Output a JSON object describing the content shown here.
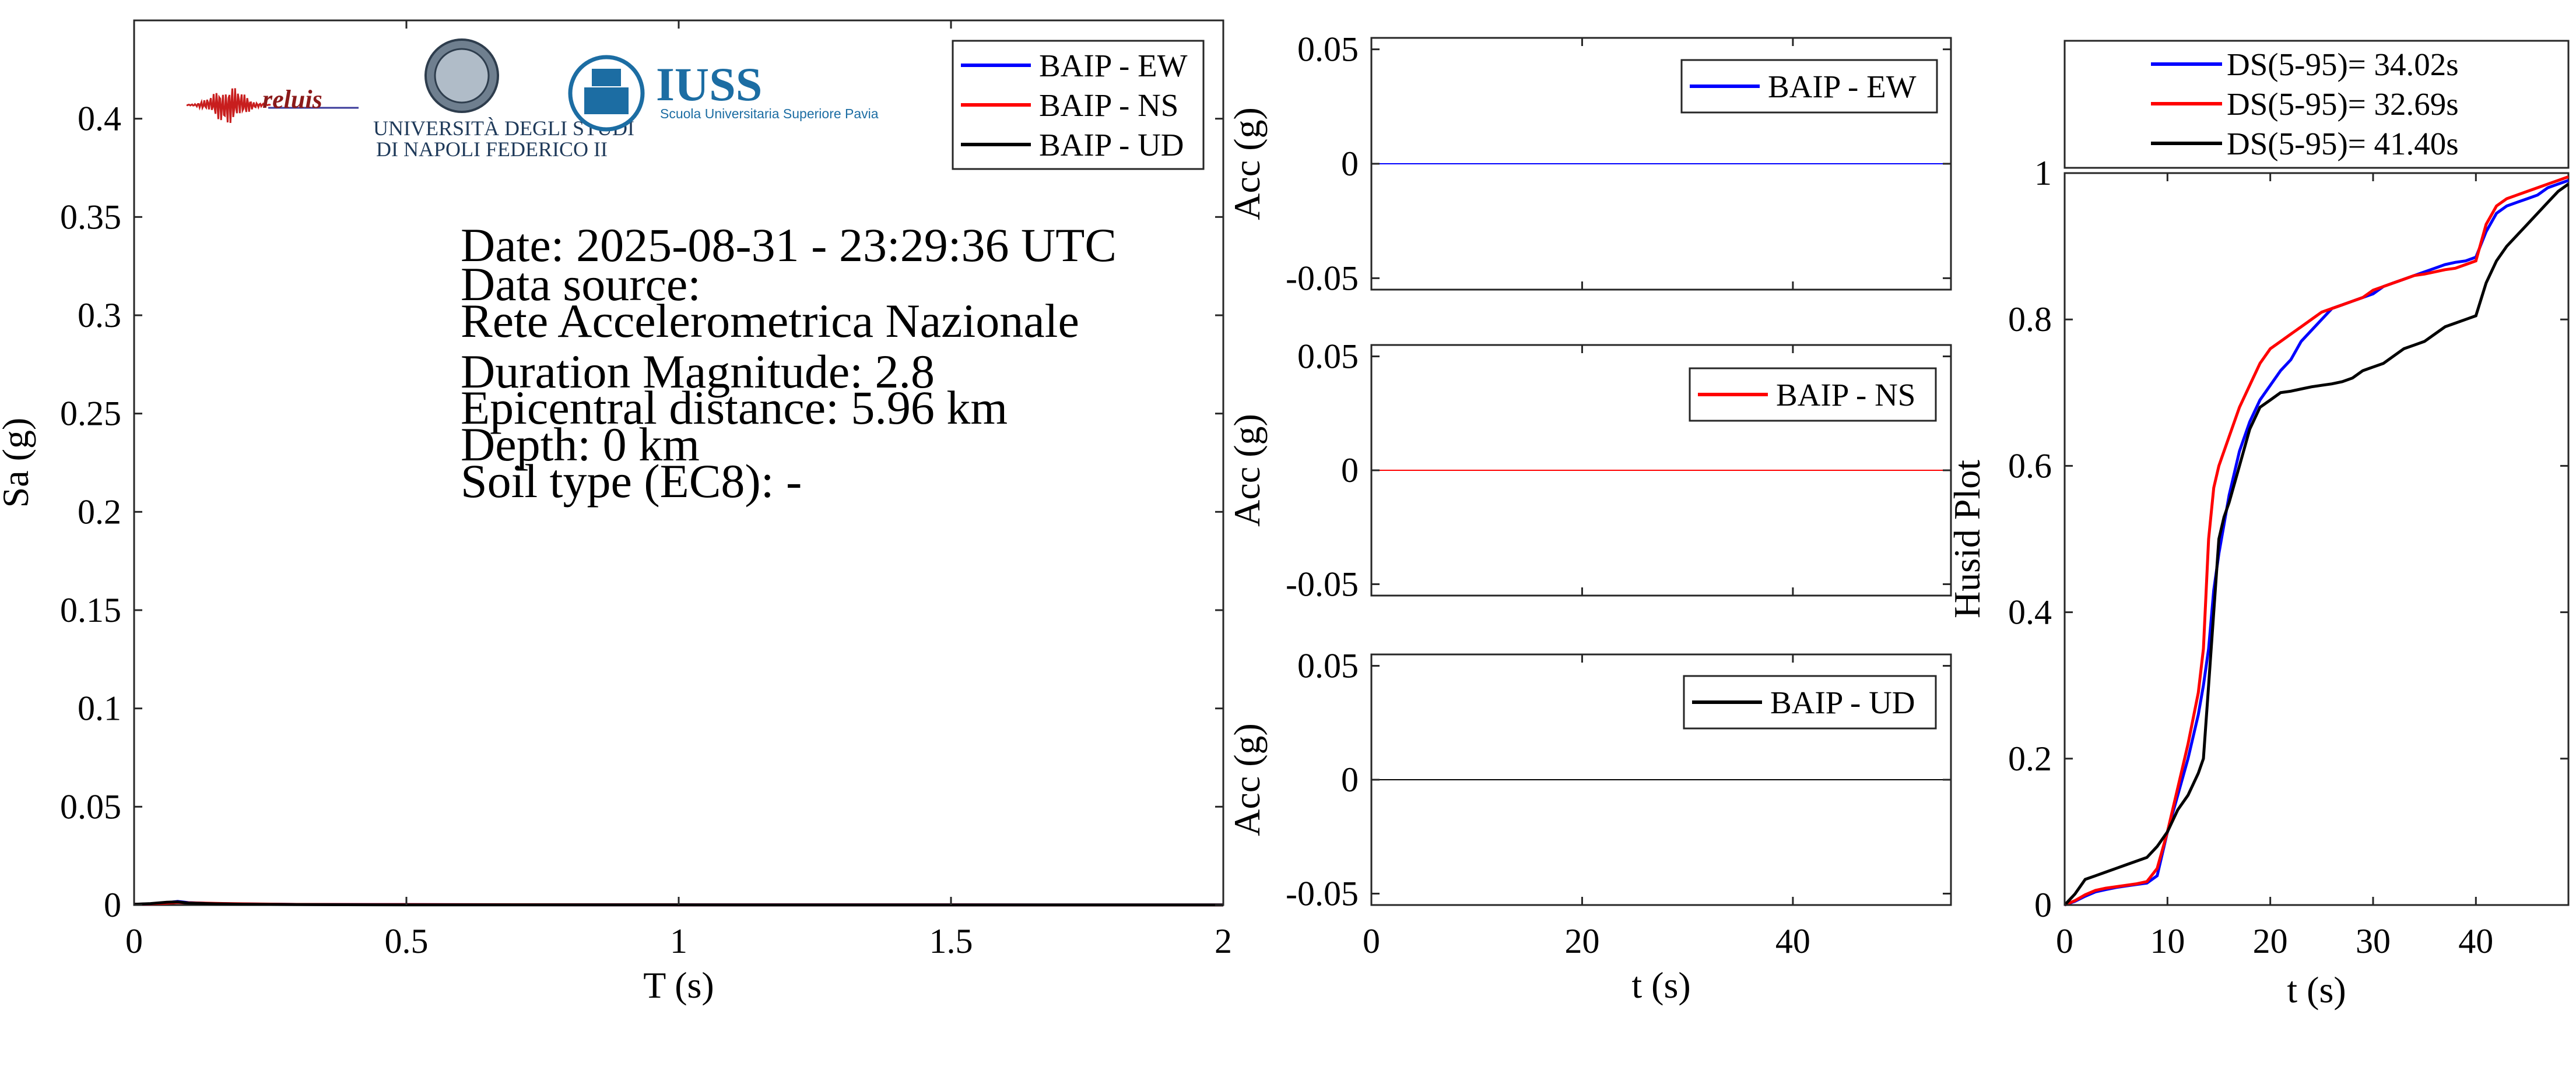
{
  "logos": {
    "reluis": "reluis",
    "unina_line1": "UNIVERSITÀ DEGLI STUDI",
    "unina_line2": "DI NAPOLI FEDERICO II",
    "iuss": "IUSS",
    "iuss_sub": "Scuola Universitaria Superiore Pavia"
  },
  "info": {
    "date": "Date: 2025-08-31 - 23:29:36 UTC",
    "source_label": "Data source:",
    "source": "Rete Accelerometrica Nazionale",
    "magnitude": "Duration Magnitude: 2.8",
    "distance": "Epicentral distance: 5.96 km",
    "depth": "Depth: 0 km",
    "soil": "Soil type (EC8): -"
  },
  "colors": {
    "ew": "#0000ff",
    "ns": "#ff0000",
    "ud": "#000000"
  },
  "chart_data": [
    {
      "type": "line",
      "xlabel": "T (s)",
      "ylabel": "Sa (g)",
      "xlim": [
        0,
        2
      ],
      "ylim": [
        0,
        0.45
      ],
      "xticks": [
        0,
        0.5,
        1,
        1.5,
        2
      ],
      "xtick_labels": [
        "0",
        "0.5",
        "1",
        "1.5",
        "2"
      ],
      "yticks": [
        0,
        0.05,
        0.1,
        0.15,
        0.2,
        0.25,
        0.3,
        0.35,
        0.4
      ],
      "ytick_labels": [
        "0",
        "0.05",
        "0.1",
        "0.15",
        "0.2",
        "0.25",
        "0.3",
        "0.35",
        "0.4"
      ],
      "legend": "top-right",
      "series": [
        {
          "name": "BAIP - EW",
          "color": "#0000ff",
          "x": [
            0,
            0.03,
            0.06,
            0.08,
            0.1,
            0.15,
            0.2,
            0.3,
            0.5,
            1,
            1.5,
            2
          ],
          "y": [
            0.0004,
            0.0006,
            0.0012,
            0.0018,
            0.0012,
            0.0007,
            0.0005,
            0.0003,
            0.0002,
            0.0001,
            5e-05,
            3e-05
          ]
        },
        {
          "name": "BAIP - NS",
          "color": "#ff0000",
          "x": [
            0,
            0.03,
            0.06,
            0.08,
            0.1,
            0.15,
            0.2,
            0.3,
            0.5,
            1,
            1.5,
            2
          ],
          "y": [
            0.0004,
            0.0006,
            0.001,
            0.0013,
            0.0011,
            0.0008,
            0.0006,
            0.0003,
            0.0002,
            0.0001,
            5e-05,
            3e-05
          ]
        },
        {
          "name": "BAIP - UD",
          "color": "#000000",
          "x": [
            0,
            0.03,
            0.06,
            0.08,
            0.1,
            0.15,
            0.2,
            0.3,
            0.5,
            1,
            1.5,
            2
          ],
          "y": [
            0.0004,
            0.0007,
            0.0014,
            0.0016,
            0.001,
            0.0006,
            0.0004,
            0.0002,
            0.0001,
            5e-05,
            3e-05,
            2e-05
          ]
        }
      ]
    },
    {
      "type": "line",
      "xlabel": "",
      "ylabel": "Acc (g)",
      "xlim": [
        0,
        55
      ],
      "ylim": [
        -0.055,
        0.055
      ],
      "yticks": [
        -0.05,
        0,
        0.05
      ],
      "ytick_labels": [
        "-0.05",
        "0",
        "0.05"
      ],
      "legend": "top-right",
      "series": [
        {
          "name": "BAIP - EW",
          "color": "#0000ff",
          "x": [
            0,
            55
          ],
          "y": [
            0,
            0
          ]
        }
      ]
    },
    {
      "type": "line",
      "xlabel": "",
      "ylabel": "Acc (g)",
      "xlim": [
        0,
        55
      ],
      "ylim": [
        -0.055,
        0.055
      ],
      "yticks": [
        -0.05,
        0,
        0.05
      ],
      "ytick_labels": [
        "-0.05",
        "0",
        "0.05"
      ],
      "legend": "top-right",
      "series": [
        {
          "name": "BAIP - NS",
          "color": "#ff0000",
          "x": [
            0,
            55
          ],
          "y": [
            0,
            0
          ]
        }
      ]
    },
    {
      "type": "line",
      "xlabel": "t (s)",
      "ylabel": "Acc (g)",
      "xlim": [
        0,
        55
      ],
      "ylim": [
        -0.055,
        0.055
      ],
      "xticks": [
        0,
        20,
        40
      ],
      "xtick_labels": [
        "0",
        "20",
        "40"
      ],
      "yticks": [
        -0.05,
        0,
        0.05
      ],
      "ytick_labels": [
        "-0.05",
        "0",
        "0.05"
      ],
      "legend": "top-right",
      "series": [
        {
          "name": "BAIP - UD",
          "color": "#000000",
          "x": [
            0,
            55
          ],
          "y": [
            0,
            0
          ]
        }
      ]
    },
    {
      "type": "line",
      "xlabel": "t (s)",
      "ylabel": "Husid Plot",
      "xlim": [
        0,
        49
      ],
      "ylim": [
        0,
        1
      ],
      "xticks": [
        0,
        10,
        20,
        30,
        40
      ],
      "xtick_labels": [
        "0",
        "10",
        "20",
        "30",
        "40"
      ],
      "yticks": [
        0,
        0.2,
        0.4,
        0.6,
        0.8,
        1
      ],
      "ytick_labels": [
        "0",
        "0.2",
        "0.4",
        "0.6",
        "0.8",
        "1"
      ],
      "legend": "top",
      "series": [
        {
          "name": "DS(5-95)= 34.02s",
          "color": "#0000ff",
          "x": [
            0,
            1,
            2,
            3,
            4,
            5,
            6,
            7,
            8,
            9,
            10,
            11,
            12,
            13,
            13.5,
            14,
            14.5,
            15,
            15.5,
            16,
            17,
            18,
            19,
            20,
            21,
            22,
            23,
            24,
            25,
            26,
            27,
            28,
            29,
            30,
            31,
            32,
            33,
            34,
            35,
            36,
            37,
            38,
            39,
            40,
            41,
            42,
            43,
            44,
            45,
            46,
            47,
            48,
            49
          ],
          "y": [
            0,
            0.005,
            0.012,
            0.018,
            0.021,
            0.024,
            0.026,
            0.028,
            0.03,
            0.04,
            0.1,
            0.15,
            0.2,
            0.26,
            0.3,
            0.35,
            0.43,
            0.48,
            0.52,
            0.56,
            0.62,
            0.66,
            0.69,
            0.71,
            0.73,
            0.745,
            0.77,
            0.785,
            0.8,
            0.815,
            0.82,
            0.825,
            0.83,
            0.835,
            0.845,
            0.85,
            0.855,
            0.86,
            0.865,
            0.87,
            0.875,
            0.878,
            0.88,
            0.885,
            0.92,
            0.945,
            0.955,
            0.96,
            0.965,
            0.97,
            0.98,
            0.985,
            0.99
          ]
        },
        {
          "name": "DS(5-95)= 32.69s",
          "color": "#ff0000",
          "x": [
            0,
            1,
            2,
            3,
            4,
            5,
            6,
            7,
            8,
            9,
            10,
            11,
            12,
            13,
            13.5,
            14,
            14.5,
            15,
            15.5,
            16,
            17,
            18,
            19,
            20,
            21,
            22,
            23,
            24,
            25,
            26,
            27,
            28,
            29,
            30,
            31,
            32,
            33,
            34,
            35,
            36,
            37,
            38,
            39,
            40,
            41,
            42,
            43,
            44,
            45,
            46,
            47,
            48,
            49
          ],
          "y": [
            0,
            0.006,
            0.014,
            0.02,
            0.023,
            0.025,
            0.027,
            0.029,
            0.032,
            0.05,
            0.1,
            0.16,
            0.22,
            0.29,
            0.35,
            0.5,
            0.57,
            0.6,
            0.62,
            0.64,
            0.68,
            0.71,
            0.74,
            0.76,
            0.77,
            0.78,
            0.79,
            0.8,
            0.81,
            0.815,
            0.82,
            0.825,
            0.83,
            0.84,
            0.845,
            0.85,
            0.855,
            0.86,
            0.862,
            0.865,
            0.868,
            0.87,
            0.875,
            0.88,
            0.93,
            0.955,
            0.965,
            0.97,
            0.975,
            0.98,
            0.985,
            0.99,
            0.995
          ]
        },
        {
          "name": "DS(5-95)= 41.40s",
          "color": "#000000",
          "x": [
            0,
            1,
            2,
            3,
            4,
            5,
            6,
            7,
            8,
            9,
            10,
            11,
            12,
            13,
            13.5,
            14,
            14.5,
            15,
            15.5,
            16,
            17,
            18,
            19,
            20,
            21,
            22,
            23,
            24,
            25,
            26,
            27,
            28,
            29,
            30,
            31,
            32,
            33,
            34,
            35,
            36,
            37,
            38,
            39,
            40,
            41,
            42,
            43,
            44,
            45,
            46,
            47,
            48,
            49
          ],
          "y": [
            0,
            0.015,
            0.035,
            0.04,
            0.045,
            0.05,
            0.055,
            0.06,
            0.065,
            0.08,
            0.1,
            0.13,
            0.15,
            0.18,
            0.2,
            0.3,
            0.4,
            0.5,
            0.53,
            0.55,
            0.6,
            0.65,
            0.68,
            0.69,
            0.7,
            0.702,
            0.705,
            0.708,
            0.71,
            0.712,
            0.715,
            0.72,
            0.73,
            0.735,
            0.74,
            0.75,
            0.76,
            0.765,
            0.77,
            0.78,
            0.79,
            0.795,
            0.8,
            0.805,
            0.85,
            0.88,
            0.9,
            0.915,
            0.93,
            0.945,
            0.96,
            0.975,
            0.985
          ]
        }
      ]
    }
  ]
}
